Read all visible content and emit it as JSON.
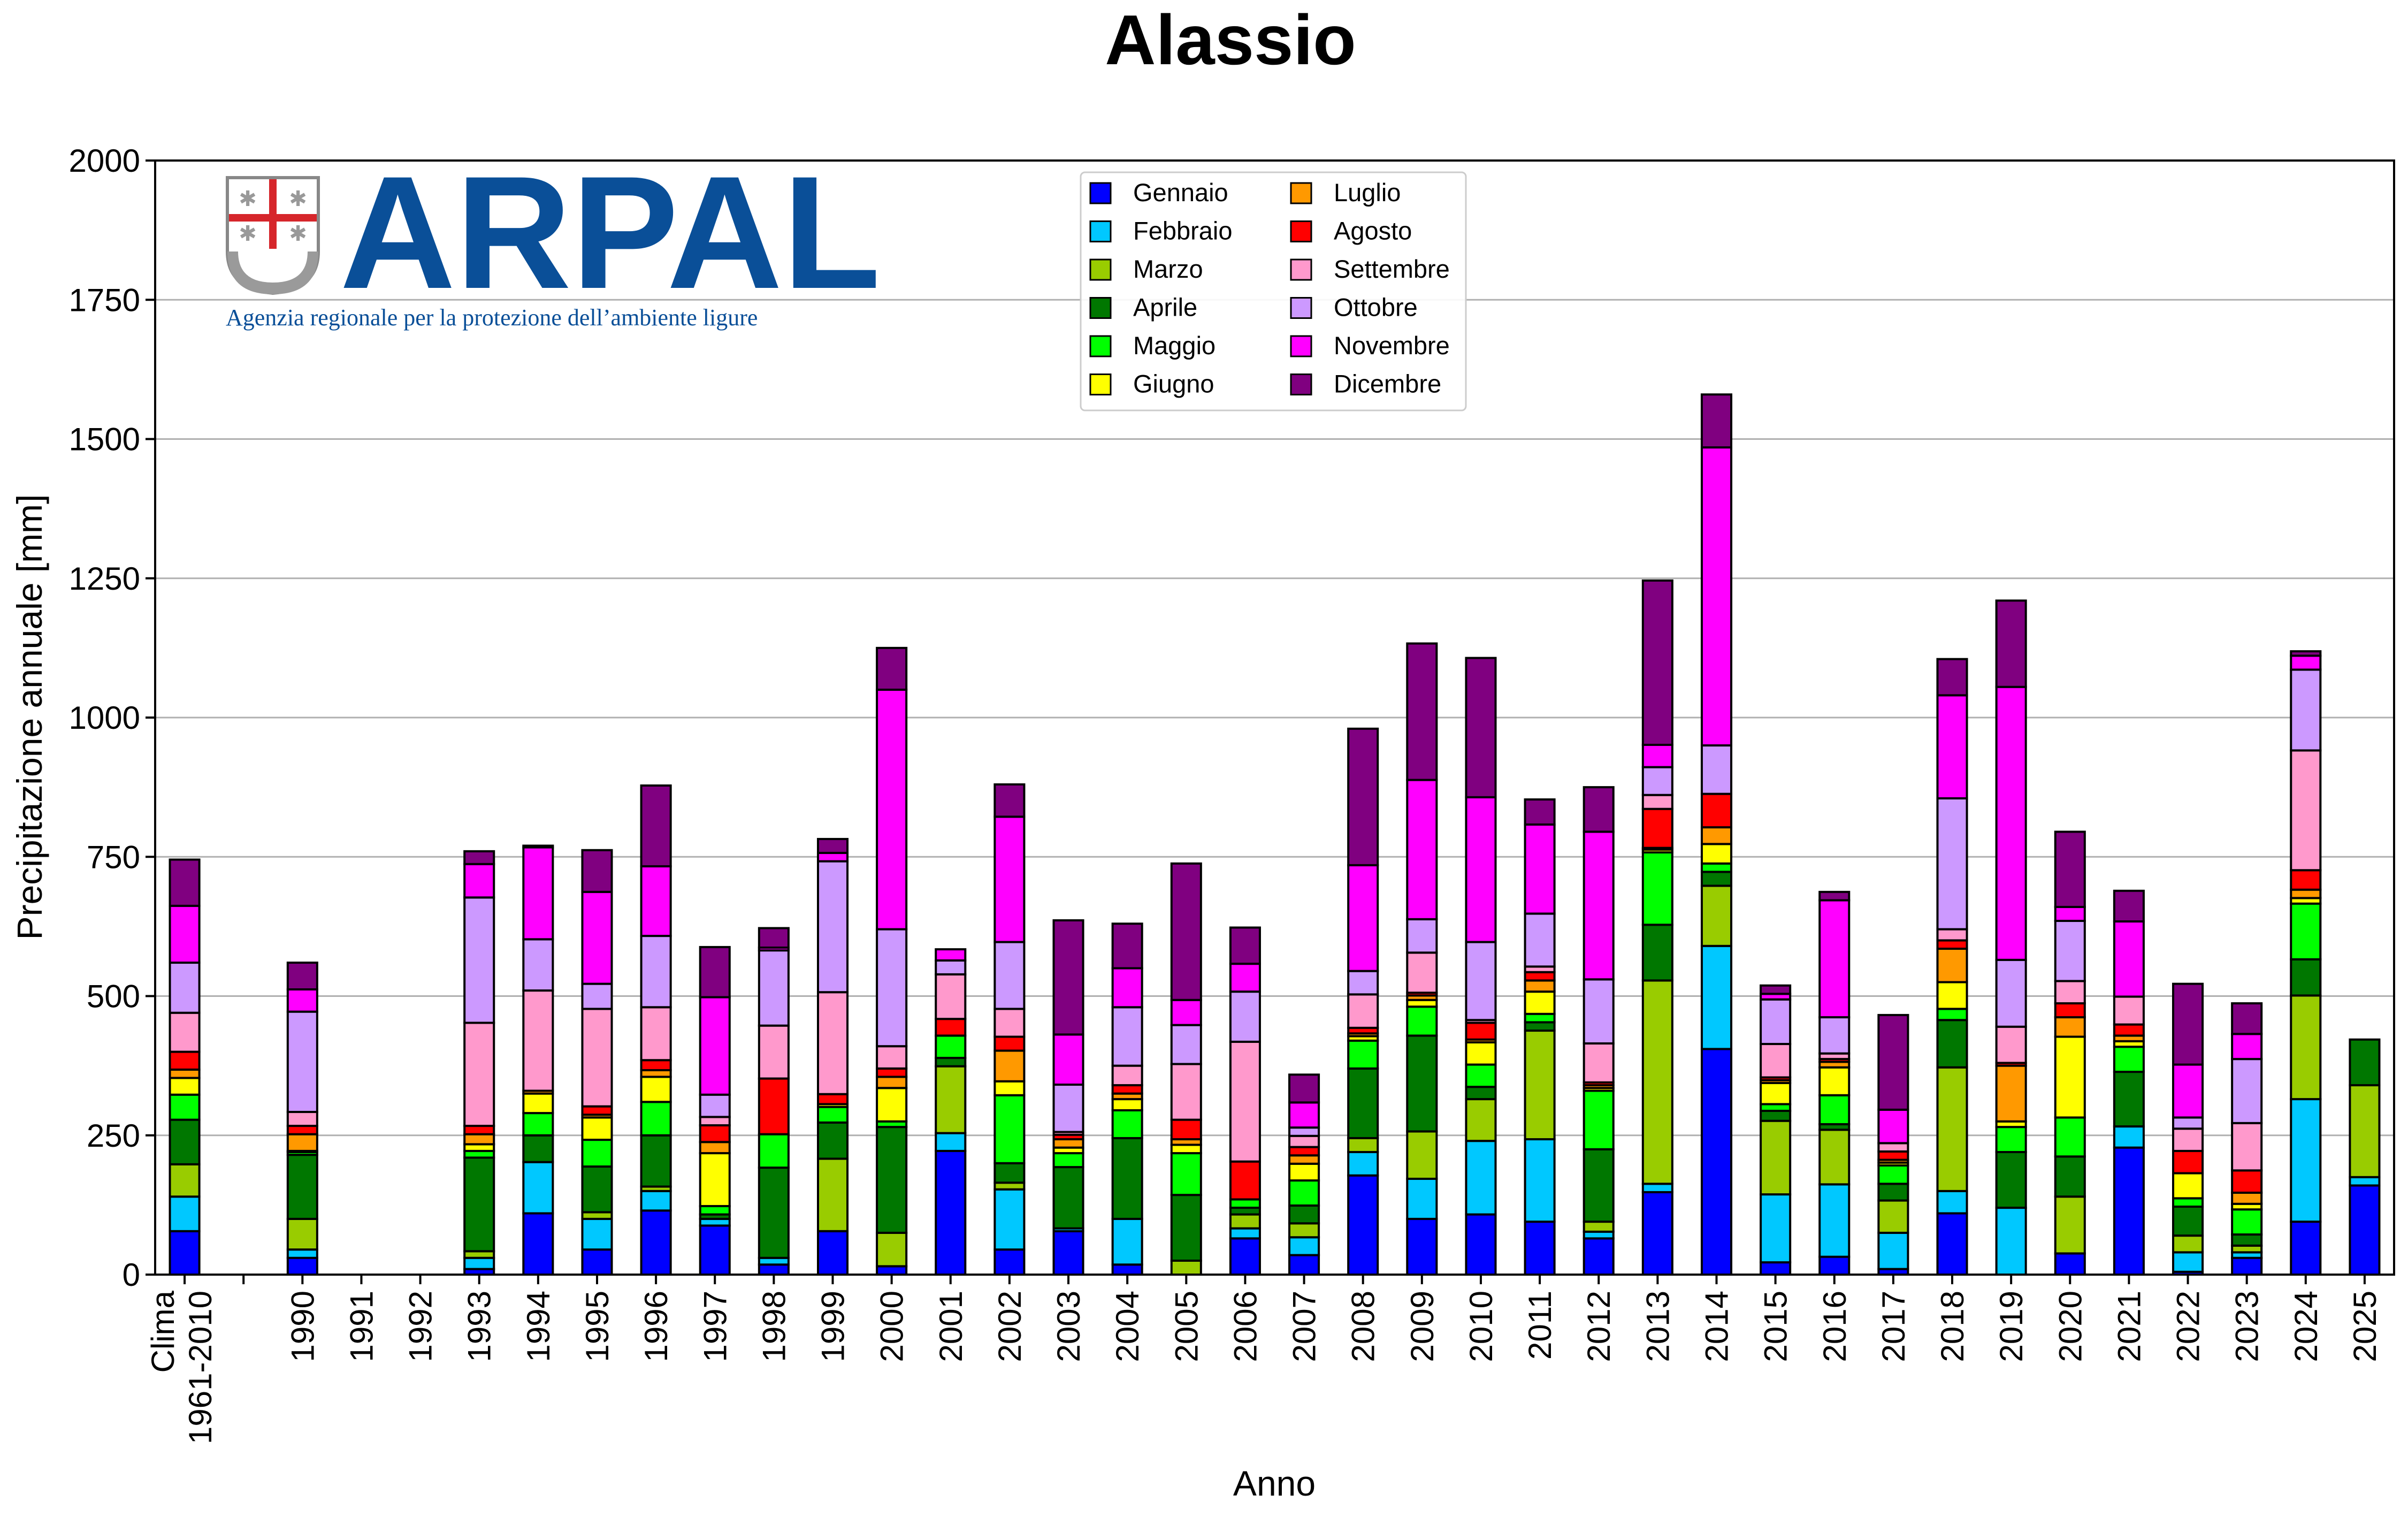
{
  "chart_data": {
    "type": "bar",
    "stacked": true,
    "title": "Alassio",
    "xlabel": "Anno",
    "ylabel": "Precipitazione annuale [mm]",
    "ylim": [
      0,
      2000
    ],
    "yticks": [
      0,
      250,
      500,
      750,
      1000,
      1250,
      1500,
      1750,
      2000
    ],
    "grid": "horizontal",
    "legend_position": "top-center",
    "categories": [
      "Clima 1961-2010",
      "",
      "1990",
      "1991",
      "1992",
      "1993",
      "1994",
      "1995",
      "1996",
      "1997",
      "1998",
      "1999",
      "2000",
      "2001",
      "2002",
      "2003",
      "2004",
      "2005",
      "2006",
      "2007",
      "2008",
      "2009",
      "2010",
      "2011",
      "2012",
      "2013",
      "2014",
      "2015",
      "2016",
      "2017",
      "2018",
      "2019",
      "2020",
      "2021",
      "2022",
      "2023",
      "2024",
      "2025"
    ],
    "category_label_lines": [
      [
        "Clima",
        "1961-2010"
      ]
    ],
    "series": [
      {
        "name": "Gennaio",
        "color": "#0000ff",
        "values": [
          78,
          0,
          30,
          0,
          0,
          10,
          110,
          45,
          115,
          88,
          18,
          78,
          15,
          222,
          45,
          78,
          18,
          0,
          65,
          35,
          178,
          100,
          108,
          95,
          65,
          148,
          405,
          22,
          32,
          10,
          110,
          0,
          38,
          228,
          5,
          30,
          95,
          160
        ]
      },
      {
        "name": "Febbraio",
        "color": "#00c8ff",
        "values": [
          62,
          0,
          15,
          0,
          0,
          20,
          92,
          55,
          35,
          12,
          12,
          0,
          0,
          32,
          108,
          5,
          82,
          0,
          18,
          32,
          42,
          72,
          132,
          148,
          12,
          15,
          185,
          122,
          130,
          65,
          40,
          120,
          0,
          38,
          35,
          10,
          220,
          15
        ]
      },
      {
        "name": "Marzo",
        "color": "#99cc00",
        "values": [
          58,
          0,
          55,
          0,
          0,
          12,
          0,
          12,
          8,
          0,
          0,
          130,
          60,
          120,
          12,
          0,
          0,
          25,
          25,
          25,
          25,
          85,
          75,
          195,
          18,
          365,
          108,
          132,
          98,
          58,
          222,
          0,
          102,
          0,
          30,
          12,
          186,
          165
        ]
      },
      {
        "name": "Aprile",
        "color": "#007700",
        "values": [
          80,
          0,
          115,
          0,
          0,
          168,
          48,
          82,
          92,
          8,
          162,
          65,
          190,
          15,
          35,
          110,
          145,
          118,
          12,
          32,
          125,
          172,
          22,
          15,
          130,
          100,
          25,
          18,
          10,
          30,
          85,
          100,
          72,
          98,
          52,
          20,
          65,
          82
        ]
      },
      {
        "name": "Maggio",
        "color": "#00ff00",
        "values": [
          45,
          0,
          5,
          0,
          0,
          12,
          40,
          48,
          60,
          15,
          60,
          28,
          10,
          40,
          122,
          25,
          50,
          75,
          15,
          45,
          50,
          52,
          40,
          15,
          105,
          130,
          15,
          12,
          52,
          33,
          20,
          45,
          70,
          45,
          15,
          45,
          100,
          0
        ]
      },
      {
        "name": "Giugno",
        "color": "#ffff00",
        "values": [
          30,
          0,
          2,
          0,
          0,
          12,
          35,
          40,
          45,
          95,
          0,
          5,
          60,
          0,
          25,
          10,
          20,
          15,
          0,
          30,
          8,
          12,
          40,
          40,
          5,
          5,
          35,
          38,
          50,
          5,
          48,
          10,
          145,
          10,
          45,
          10,
          10,
          0
        ]
      },
      {
        "name": "Luglio",
        "color": "#ff9900",
        "values": [
          15,
          0,
          30,
          0,
          0,
          18,
          5,
          5,
          12,
          20,
          0,
          0,
          20,
          0,
          55,
          15,
          10,
          10,
          0,
          15,
          5,
          8,
          5,
          20,
          5,
          3,
          30,
          5,
          10,
          5,
          60,
          100,
          35,
          10,
          0,
          20,
          15,
          0
        ]
      },
      {
        "name": "Agosto",
        "color": "#ff0000",
        "values": [
          32,
          0,
          15,
          0,
          0,
          15,
          0,
          15,
          18,
          30,
          100,
          18,
          15,
          30,
          25,
          8,
          15,
          35,
          68,
          15,
          10,
          5,
          30,
          15,
          5,
          70,
          60,
          5,
          5,
          15,
          15,
          5,
          25,
          20,
          40,
          40,
          35,
          0
        ]
      },
      {
        "name": "Settembre",
        "color": "#ff99cc",
        "values": [
          70,
          0,
          25,
          0,
          0,
          185,
          180,
          175,
          95,
          15,
          95,
          183,
          40,
          80,
          50,
          5,
          35,
          100,
          215,
          20,
          60,
          72,
          5,
          10,
          70,
          25,
          0,
          60,
          10,
          15,
          20,
          65,
          40,
          50,
          40,
          85,
          215,
          0
        ]
      },
      {
        "name": "Ottobre",
        "color": "#cc99ff",
        "values": [
          90,
          0,
          180,
          0,
          0,
          225,
          92,
          45,
          128,
          40,
          135,
          235,
          210,
          25,
          120,
          85,
          105,
          70,
          90,
          15,
          42,
          60,
          140,
          95,
          115,
          50,
          87,
          80,
          65,
          0,
          235,
          120,
          108,
          0,
          20,
          115,
          145,
          0
        ]
      },
      {
        "name": "Novembre",
        "color": "#ff00ff",
        "values": [
          102,
          0,
          40,
          0,
          0,
          60,
          165,
          165,
          125,
          175,
          5,
          15,
          430,
          20,
          225,
          90,
          70,
          45,
          50,
          45,
          190,
          250,
          260,
          160,
          265,
          40,
          535,
          10,
          210,
          60,
          185,
          490,
          25,
          135,
          95,
          45,
          25,
          0
        ]
      },
      {
        "name": "Dicembre",
        "color": "#800080",
        "values": [
          83,
          0,
          48,
          0,
          0,
          23,
          3,
          75,
          145,
          90,
          35,
          25,
          75,
          0,
          58,
          205,
          80,
          245,
          65,
          50,
          245,
          245,
          250,
          45,
          80,
          295,
          95,
          15,
          15,
          170,
          65,
          155,
          135,
          55,
          145,
          55,
          8,
          0
        ]
      }
    ]
  },
  "logo": {
    "name": "ARPAL",
    "subtitle": "Agenzia regionale per la protezione dell’ambiente ligure"
  }
}
